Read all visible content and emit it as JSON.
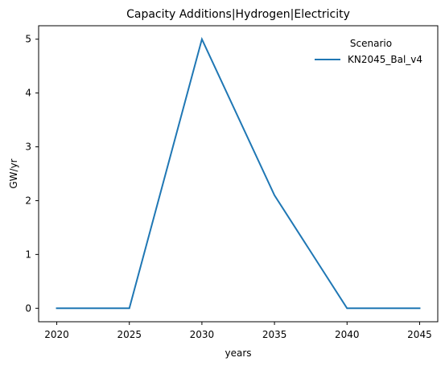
{
  "chart_data": {
    "type": "line",
    "title": "Capacity Additions|Hydrogen|Electricity",
    "xlabel": "years",
    "ylabel": "GW/yr",
    "x": [
      2020,
      2025,
      2030,
      2035,
      2040,
      2045
    ],
    "series": [
      {
        "name": "KN2045_Bal_v4",
        "values": [
          0,
          0,
          5,
          2.1,
          0,
          0
        ],
        "color": "#1f77b4"
      }
    ],
    "xticks": [
      2020,
      2025,
      2030,
      2035,
      2040,
      2045
    ],
    "yticks": [
      0,
      1,
      2,
      3,
      4,
      5
    ],
    "xlim": [
      2018.75,
      2046.25
    ],
    "ylim": [
      -0.25,
      5.25
    ],
    "grid": false,
    "legend": {
      "title": "Scenario",
      "position": "top-right"
    }
  }
}
